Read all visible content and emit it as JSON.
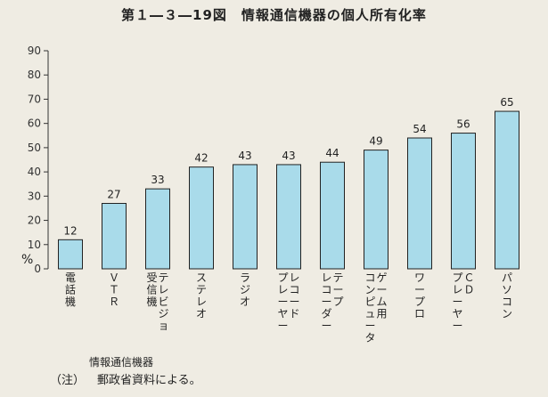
{
  "title": "第１―３―19図　情報通信機器の個人所有化率",
  "note": {
    "label": "（注）",
    "text": "郵政省資料による。"
  },
  "colors": {
    "bar_fill": "#a9dbea",
    "bar_stroke": "#222222",
    "axis": "#333333",
    "grid": "#555555"
  },
  "chart_data": {
    "type": "bar",
    "title": "第１―３―19図　情報通信機器の個人所有化率",
    "xlabel": "情報通信機器",
    "ylabel": "%",
    "ylim": [
      0,
      90
    ],
    "yticks": [
      0,
      10,
      20,
      30,
      40,
      50,
      60,
      70,
      80,
      90
    ],
    "grid": false,
    "categories": [
      "電話機",
      "ＶＴＲ",
      "テレビジョン受信機",
      "ステレオ",
      "ラジオ",
      "レコードプレーヤー",
      "テープレコーダー",
      "ゲーム用コンピュータ",
      "ワープロ",
      "ＣＤプレーヤー",
      "パソコン"
    ],
    "category_columns": [
      [
        "電話機"
      ],
      [
        "ＶＴＲ"
      ],
      [
        "テレビジョ",
        "受信機"
      ],
      [
        "ステレオ"
      ],
      [
        "ラジオ"
      ],
      [
        "レコード",
        "プレーヤー"
      ],
      [
        "テープ",
        "レコーダー"
      ],
      [
        "ゲーム用",
        "コンピュータ"
      ],
      [
        "ワープロ"
      ],
      [
        "ＣＤ",
        "プレーヤー"
      ],
      [
        "パソコン"
      ]
    ],
    "values": [
      12,
      27,
      33,
      42,
      43,
      43,
      44,
      49,
      54,
      56,
      65
    ]
  }
}
